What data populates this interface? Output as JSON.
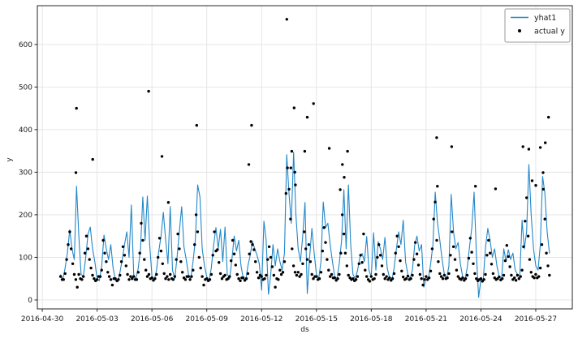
{
  "figure": {
    "background": "#ffffff"
  },
  "chart_data": {
    "type": "line+scatter",
    "title": "",
    "grid": true,
    "x_axis": {
      "label": "ds",
      "unit": "date",
      "tick_labels": [
        "2016-04-30",
        "2016-05-03",
        "2016-05-06",
        "2016-05-09",
        "2016-05-12",
        "2016-05-15",
        "2016-05-18",
        "2016-05-21",
        "2016-05-24",
        "2016-05-27"
      ],
      "tick_positions_days": [
        0,
        3,
        6,
        9,
        12,
        15,
        18,
        21,
        24,
        27
      ],
      "range_days": [
        -0.27,
        29.0
      ]
    },
    "y_axis": {
      "label": "y",
      "tick_labels": [
        "0",
        "100",
        "200",
        "300",
        "400",
        "500",
        "600"
      ],
      "tick_values": [
        0,
        100,
        200,
        300,
        400,
        500,
        600
      ],
      "range": [
        -21,
        691
      ]
    },
    "legend": {
      "position": "upper right"
    },
    "colors": {
      "yhat1": "#2287c8",
      "actual_y": "#000000",
      "grid": "#e3e3e3",
      "axis": "#262626",
      "legend_border": "#999999",
      "legend_bg": "#ffffff"
    },
    "series": [
      {
        "name": "yhat1",
        "type": "line",
        "color_key": "yhat1",
        "x_start_day": 1.0,
        "x_step_days": 0.125,
        "y": [
          60,
          48,
          75,
          110,
          165,
          120,
          95,
          267,
          150,
          60,
          55,
          100,
          155,
          171,
          120,
          90,
          50,
          45,
          80,
          152,
          120,
          95,
          130,
          75,
          48,
          42,
          65,
          95,
          130,
          160,
          100,
          223,
          60,
          50,
          75,
          120,
          242,
          140,
          244,
          130,
          55,
          45,
          70,
          115,
          150,
          206,
          140,
          85,
          219,
          70,
          50,
          100,
          160,
          219,
          125,
          95,
          60,
          50,
          90,
          140,
          270,
          242,
          120,
          80,
          55,
          45,
          75,
          130,
          170,
          120,
          166,
          90,
          171,
          60,
          50,
          95,
          150,
          115,
          140,
          80,
          50,
          45,
          80,
          105,
          137,
          120,
          105,
          85,
          23,
          185,
          139,
          13,
          60,
          130,
          80,
          120,
          90,
          70,
          110,
          341,
          250,
          180,
          347,
          200,
          120,
          90,
          150,
          229,
          15,
          100,
          168,
          110,
          60,
          50,
          90,
          230,
          170,
          180,
          130,
          90,
          55,
          50,
          85,
          140,
          259,
          120,
          270,
          130,
          60,
          50,
          70,
          100,
          109,
          90,
          149,
          70,
          55,
          158,
          70,
          137,
          120,
          95,
          147,
          75,
          52,
          46,
          75,
          120,
          160,
          130,
          187,
          90,
          60,
          50,
          70,
          128,
          150,
          115,
          130,
          30,
          55,
          50,
          85,
          130,
          253,
          180,
          140,
          95,
          60,
          50,
          80,
          248,
          160,
          120,
          135,
          85,
          55,
          48,
          75,
          125,
          170,
          253,
          110,
          6,
          50,
          45,
          124,
          168,
          140,
          100,
          120,
          80,
          55,
          48,
          120,
          90,
          118,
          95,
          110,
          70,
          60,
          55,
          187,
          120,
          160,
          318,
          200,
          120,
          80,
          70,
          130,
          290,
          250,
          160,
          109
        ]
      },
      {
        "name": "actual y",
        "type": "scatter",
        "color_key": "actual_y",
        "x_start_day": 1.0,
        "x_step_days": 0.08333,
        "y": [
          55,
          48,
          48,
          62,
          95,
          130,
          160,
          120,
          85,
          60,
          48,
          30,
          60,
          50,
          48,
          55,
          110,
          150,
          120,
          95,
          75,
          58,
          50,
          45,
          48,
          55,
          55,
          70,
          140,
          110,
          90,
          65,
          55,
          48,
          35,
          50,
          50,
          45,
          48,
          58,
          90,
          125,
          105,
          80,
          60,
          48,
          55,
          50,
          55,
          48,
          48,
          65,
          110,
          180,
          140,
          95,
          70,
          55,
          60,
          50,
          52,
          46,
          50,
          60,
          100,
          145,
          115,
          85,
          62,
          50,
          55,
          48,
          60,
          50,
          48,
          55,
          95,
          155,
          120,
          90,
          65,
          52,
          48,
          55,
          55,
          48,
          55,
          70,
          130,
          200,
          160,
          100,
          75,
          55,
          35,
          48,
          50,
          45,
          48,
          60,
          105,
          160,
          115,
          118,
          88,
          62,
          50,
          55,
          58,
          48,
          50,
          55,
          92,
          140,
          108,
          82,
          60,
          50,
          45,
          52,
          52,
          46,
          50,
          62,
          108,
          137,
          130,
          118,
          90,
          65,
          52,
          58,
          55,
          48,
          50,
          58,
          95,
          125,
          100,
          78,
          58,
          30,
          50,
          48,
          70,
          60,
          65,
          90,
          250,
          310,
          260,
          190,
          120,
          80,
          65,
          58,
          65,
          55,
          60,
          85,
          160,
          120,
          95,
          130,
          90,
          60,
          50,
          55,
          55,
          48,
          50,
          65,
          115,
          170,
          135,
          95,
          70,
          55,
          60,
          52,
          52,
          46,
          50,
          60,
          110,
          200,
          155,
          110,
          80,
          58,
          52,
          48,
          50,
          45,
          48,
          55,
          85,
          105,
          88,
          155,
          70,
          55,
          48,
          44,
          55,
          48,
          50,
          60,
          100,
          130,
          105,
          80,
          60,
          50,
          55,
          48,
          52,
          46,
          50,
          62,
          110,
          150,
          125,
          92,
          68,
          54,
          48,
          50,
          56,
          48,
          50,
          58,
          95,
          135,
          108,
          82,
          60,
          50,
          35,
          48,
          55,
          48,
          52,
          68,
          120,
          190,
          230,
          140,
          90,
          62,
          55,
          50,
          58,
          50,
          52,
          62,
          105,
          160,
          125,
          95,
          70,
          55,
          50,
          48,
          52,
          46,
          50,
          58,
          98,
          145,
          112,
          85,
          62,
          50,
          45,
          48,
          50,
          44,
          48,
          60,
          105,
          140,
          110,
          84,
          62,
          52,
          48,
          50,
          54,
          47,
          50,
          58,
          92,
          128,
          102,
          78,
          58,
          48,
          52,
          46,
          58,
          50,
          55,
          70,
          125,
          185,
          240,
          150,
          95,
          65,
          55,
          52,
          60,
          52,
          55,
          75,
          130,
          260,
          190,
          110,
          80,
          58
        ],
        "outliers": {
          "x": [
            1.84,
            1.87,
            2.76,
            5.82,
            6.55,
            6.9,
            8.45,
            11.3,
            11.45,
            13.38,
            13.6,
            13.65,
            13.78,
            13.82,
            13.85,
            14.36,
            14.5,
            14.84,
            15.7,
            16.3,
            16.42,
            16.52,
            16.7,
            21.58,
            21.62,
            22.4,
            23.7,
            24.8,
            26.3,
            26.62,
            26.8,
            27.0,
            27.25,
            27.4,
            27.52,
            27.7
          ],
          "y": [
            299,
            450,
            330,
            490,
            337,
            229,
            410,
            318,
            410,
            659,
            310,
            349,
            451,
            300,
            270,
            349,
            429,
            461,
            356,
            259,
            318,
            288,
            349,
            381,
            267,
            360,
            267,
            261,
            360,
            354,
            280,
            269,
            358,
            299,
            369,
            429
          ]
        }
      }
    ]
  }
}
